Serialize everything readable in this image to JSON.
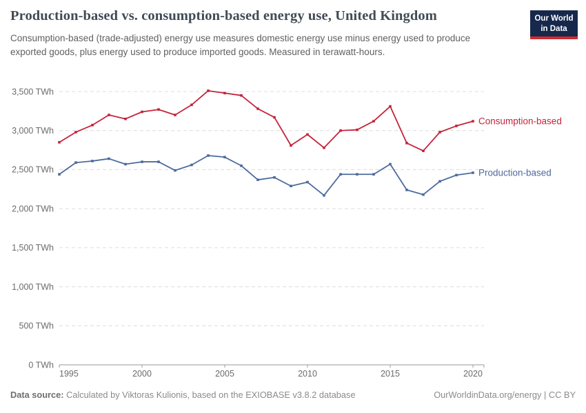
{
  "header": {
    "title": "Production-based vs. consumption-based energy use, United Kingdom",
    "subtitle": "Consumption-based (trade-adjusted) energy use measures domestic energy use minus energy used to produce exported goods, plus energy used to produce imported goods. Measured in terawatt-hours.",
    "logo": {
      "line1": "Our World",
      "line2": "in Data"
    }
  },
  "chart_data": {
    "type": "line",
    "title": "Production-based vs. consumption-based energy use, United Kingdom",
    "unit": "TWh",
    "x": [
      1995,
      1996,
      1997,
      1998,
      1999,
      2000,
      2001,
      2002,
      2003,
      2004,
      2005,
      2006,
      2007,
      2008,
      2009,
      2010,
      2011,
      2012,
      2013,
      2014,
      2015,
      2016,
      2017,
      2018,
      2019,
      2020
    ],
    "series": [
      {
        "name": "Consumption-based",
        "color": "#C4233B",
        "values": [
          2850,
          2980,
          3070,
          3200,
          3150,
          3240,
          3270,
          3200,
          3330,
          3510,
          3480,
          3450,
          3280,
          3170,
          2810,
          2950,
          2780,
          3000,
          3010,
          3120,
          3310,
          2840,
          2740,
          2980,
          3060,
          3120
        ]
      },
      {
        "name": "Production-based",
        "color": "#4C6A9C",
        "values": [
          2440,
          2590,
          2610,
          2640,
          2570,
          2600,
          2600,
          2490,
          2560,
          2680,
          2660,
          2550,
          2370,
          2400,
          2290,
          2340,
          2170,
          2440,
          2440,
          2440,
          2570,
          2240,
          2180,
          2350,
          2430,
          2460
        ]
      }
    ],
    "xlim": [
      1995,
      2020
    ],
    "ylim": [
      0,
      3500
    ],
    "xticks": [
      1995,
      2000,
      2005,
      2010,
      2015,
      2020
    ],
    "yticks": [
      0,
      500,
      1000,
      1500,
      2000,
      2500,
      3000,
      3500
    ],
    "ytick_labels": [
      "0 TWh",
      "500 TWh",
      "1,000 TWh",
      "1,500 TWh",
      "2,000 TWh",
      "2,500 TWh",
      "3,000 TWh",
      "3,500 TWh"
    ],
    "grid": "horizontal-dashed",
    "legend_position": "line-end",
    "colors": {
      "grid": "#dcdcdc",
      "axis": "#9a9a9a",
      "tick_text": "#6b6b6b"
    }
  },
  "footer": {
    "data_source_label": "Data source:",
    "data_source_text": " Calculated by Viktoras Kulionis, based on the EXIOBASE v3.8.2 database",
    "link": "OurWorldinData.org/energy | CC BY"
  }
}
